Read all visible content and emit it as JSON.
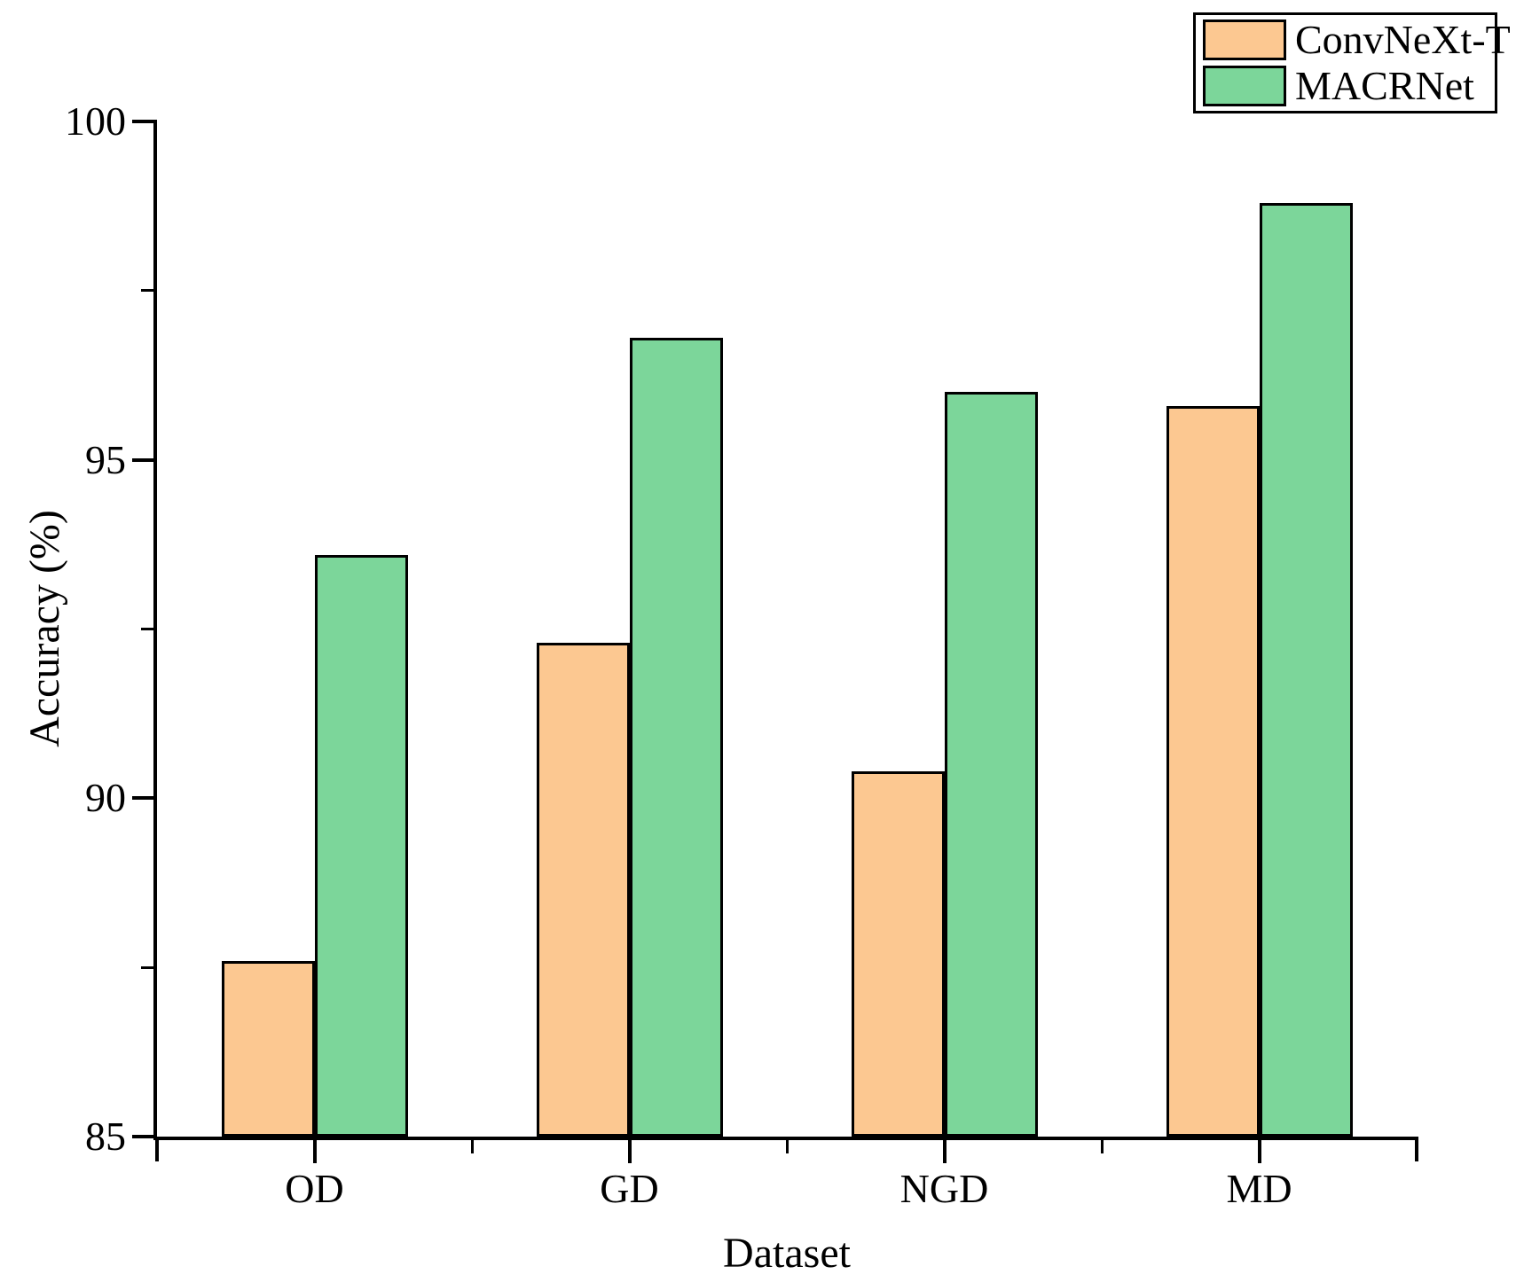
{
  "chart_data": {
    "type": "bar",
    "title": "",
    "categories": [
      "OD",
      "GD",
      "NGD",
      "MD"
    ],
    "series": [
      {
        "name": "ConvNeXt-T",
        "color": "#FCC891",
        "values": [
          87.6,
          92.3,
          90.4,
          95.8
        ]
      },
      {
        "name": "MACRNet",
        "color": "#7CD69A",
        "values": [
          93.6,
          96.8,
          96.0,
          98.8
        ]
      }
    ],
    "xlabel": "Dataset",
    "ylabel": "Accuracy (%)",
    "ylim": [
      85,
      100
    ],
    "y_major_ticks": [
      85,
      90,
      95,
      100
    ],
    "y_minor_ticks": [
      87.5,
      92.5,
      97.5
    ],
    "bar_edge_color": "#000000",
    "background_color": "#FFFFFF",
    "grid": false,
    "legend": {
      "position": "top-right",
      "entries": [
        "ConvNeXt-T",
        "MACRNet"
      ]
    }
  }
}
